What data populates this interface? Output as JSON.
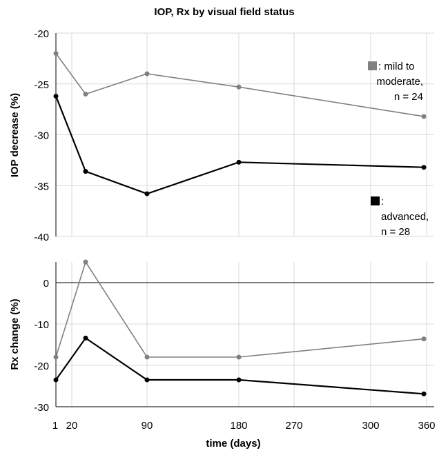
{
  "chart_data": {
    "title": "IOP, Rx by visual field status",
    "xlabel": "time (days)",
    "x_tick_labels": [
      "1",
      "20",
      "90",
      "180",
      "270",
      "300",
      "360"
    ],
    "x_categories_note_free": true,
    "x": [
      1,
      30,
      90,
      210,
      360
    ],
    "colors": {
      "mild": "#808080",
      "advanced": "#000000",
      "grid": "#d9d9d9",
      "axis": "#000000"
    },
    "panels": [
      {
        "id": "iop",
        "type": "line",
        "ylabel": "IOP decrease (%)",
        "ylim": [
          -40,
          -20
        ],
        "yticks": [
          -20,
          -25,
          -30,
          -35,
          -40
        ],
        "series": [
          {
            "name": ": mild to moderate, n = 24",
            "key": "mild",
            "values": [
              -22.0,
              -26.0,
              -24.0,
              -25.3,
              -28.2
            ]
          },
          {
            "name": ": advanced, n = 28",
            "key": "advanced",
            "values": [
              -26.2,
              -33.6,
              -35.8,
              -32.7,
              -33.2
            ]
          }
        ],
        "legend": [
          {
            "key": "mild",
            "lines": [
              ": mild to",
              "moderate,",
              "n = 24"
            ]
          },
          {
            "key": "advanced",
            "lines": [
              ":",
              "advanced,",
              "n = 28"
            ]
          }
        ]
      },
      {
        "id": "rx",
        "type": "line",
        "ylabel": "Rx change (%)",
        "ylim": [
          -30,
          5
        ],
        "yticks": [
          0,
          -10,
          -20,
          -30
        ],
        "series": [
          {
            "key": "mild",
            "values": [
              -18.0,
              5.0,
              -18.0,
              -18.0,
              -13.6
            ]
          },
          {
            "key": "advanced",
            "values": [
              -23.5,
              -13.4,
              -23.5,
              -23.5,
              -26.9
            ]
          }
        ]
      }
    ]
  }
}
